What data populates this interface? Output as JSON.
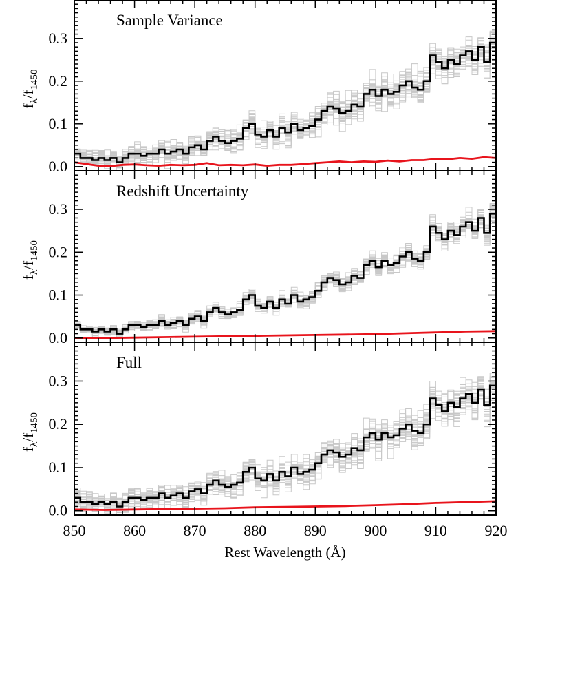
{
  "chart_data": {
    "type": "line",
    "layout": "three vertically stacked panels sharing the x axis",
    "x_axis": {
      "label": "Rest Wavelength (Å)",
      "xlim": [
        850,
        920
      ],
      "ticks": [
        850,
        860,
        870,
        880,
        890,
        900,
        910,
        920
      ]
    },
    "y_axis": {
      "label_main": "f",
      "label_sub_1": "λ",
      "label_sep": "/f",
      "label_sub_2": "1450",
      "ylim": [
        -0.01,
        0.39
      ],
      "ticks": [
        0.0,
        0.1,
        0.2,
        0.3
      ],
      "tick_labels": [
        "0.0",
        "0.1",
        "0.2",
        "0.3"
      ]
    },
    "colors": {
      "mean": "#000000",
      "realizations": "#c8c8c8",
      "scatter": "#e8141c"
    },
    "mean_composite": {
      "description": "black stepped line, identical in all panels",
      "x": [
        850.5,
        851.5,
        852.5,
        853.5,
        854.5,
        855.5,
        856.5,
        857.5,
        858.5,
        859.5,
        860.5,
        861.5,
        862.5,
        863.5,
        864.5,
        865.5,
        866.5,
        867.5,
        868.5,
        869.5,
        870.5,
        871.5,
        872.5,
        873.5,
        874.5,
        875.5,
        876.5,
        877.5,
        878.5,
        879.5,
        880.5,
        881.5,
        882.5,
        883.5,
        884.5,
        885.5,
        886.5,
        887.5,
        888.5,
        889.5,
        890.5,
        891.5,
        892.5,
        893.5,
        894.5,
        895.5,
        896.5,
        897.5,
        898.5,
        899.5,
        900.5,
        901.5,
        902.5,
        903.5,
        904.5,
        905.5,
        906.5,
        907.5,
        908.5,
        909.5,
        910.5,
        911.5,
        912.5,
        913.5,
        914.5,
        915.5,
        916.5,
        917.5,
        918.5,
        919.5
      ],
      "y": [
        0.03,
        0.02,
        0.02,
        0.015,
        0.02,
        0.015,
        0.02,
        0.01,
        0.02,
        0.03,
        0.03,
        0.025,
        0.03,
        0.03,
        0.04,
        0.03,
        0.035,
        0.04,
        0.03,
        0.045,
        0.05,
        0.04,
        0.06,
        0.07,
        0.06,
        0.055,
        0.06,
        0.065,
        0.09,
        0.1,
        0.075,
        0.07,
        0.085,
        0.07,
        0.09,
        0.08,
        0.1,
        0.085,
        0.09,
        0.095,
        0.11,
        0.13,
        0.14,
        0.135,
        0.125,
        0.13,
        0.145,
        0.14,
        0.17,
        0.18,
        0.165,
        0.18,
        0.17,
        0.175,
        0.19,
        0.2,
        0.185,
        0.18,
        0.2,
        0.26,
        0.245,
        0.23,
        0.25,
        0.24,
        0.26,
        0.27,
        0.25,
        0.28,
        0.245,
        0.29
      ]
    },
    "panels": [
      {
        "title": "Sample Variance",
        "scatter_series": {
          "x": [
            850,
            852,
            854,
            856,
            858,
            860,
            862,
            864,
            866,
            868,
            870,
            872,
            874,
            876,
            878,
            880,
            882,
            884,
            886,
            888,
            890,
            892,
            894,
            896,
            898,
            900,
            902,
            904,
            906,
            908,
            910,
            912,
            914,
            916,
            918,
            920
          ],
          "y": [
            0.01,
            0.006,
            0.002,
            0.001,
            0.004,
            0.005,
            0.003,
            0.002,
            0.004,
            0.003,
            0.004,
            0.008,
            0.003,
            0.004,
            0.003,
            0.005,
            0.002,
            0.004,
            0.004,
            0.006,
            0.008,
            0.01,
            0.012,
            0.01,
            0.012,
            0.011,
            0.014,
            0.012,
            0.015,
            0.015,
            0.018,
            0.017,
            0.02,
            0.018,
            0.022,
            0.02
          ]
        },
        "realization_spread": [
          0.012,
          0.028
        ]
      },
      {
        "title": "Redshift Uncertainty",
        "scatter_series": {
          "x": [
            850,
            855,
            860,
            865,
            870,
            875,
            880,
            885,
            890,
            895,
            900,
            905,
            910,
            915,
            920
          ],
          "y": [
            0.0,
            0.0,
            0.001,
            0.002,
            0.003,
            0.004,
            0.005,
            0.006,
            0.007,
            0.008,
            0.009,
            0.011,
            0.013,
            0.015,
            0.016
          ]
        },
        "realization_spread": [
          0.006,
          0.016
        ]
      },
      {
        "title": "Full",
        "scatter_series": {
          "x": [
            850,
            855,
            860,
            865,
            870,
            875,
            880,
            885,
            890,
            895,
            900,
            905,
            910,
            915,
            920
          ],
          "y": [
            0.003,
            0.002,
            0.003,
            0.004,
            0.005,
            0.006,
            0.008,
            0.009,
            0.01,
            0.011,
            0.013,
            0.015,
            0.018,
            0.02,
            0.022
          ]
        },
        "realization_spread": [
          0.013,
          0.03
        ]
      }
    ]
  }
}
